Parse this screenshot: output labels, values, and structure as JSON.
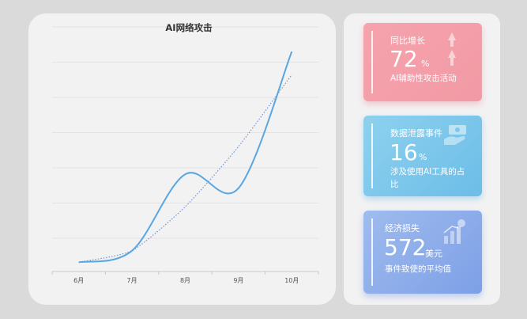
{
  "chart_data": {
    "type": "line",
    "title": "AI网络攻击",
    "categories": [
      "6月",
      "7月",
      "8月",
      "9月",
      "10月"
    ],
    "series": [
      {
        "values": [
          0,
          0.5,
          3.8,
          3.2,
          9.1
        ],
        "color": "#5aa7e0",
        "style": "solid"
      },
      {
        "values": [
          0,
          0.5,
          2.4,
          5.0,
          8.1
        ],
        "color": "#6f93d8",
        "style": "dotted"
      }
    ],
    "ylim": [
      -0.4,
      10.2
    ],
    "grid": "horizontal"
  },
  "cards": [
    {
      "label": "同比增长",
      "value": "72",
      "unit": "%",
      "desc": "AI辅助性攻击活动",
      "icon": "double-arrow-up-icon",
      "color": "#f5a3ad"
    },
    {
      "label": "数据泄露事件",
      "value": "16",
      "unit": "%",
      "desc": "涉及使用AI工具的占比",
      "icon": "money-hand-icon",
      "color": "#7cc6ec"
    },
    {
      "label": "经济损失",
      "value": "572",
      "unit": "美元",
      "desc": "事件致使的平均值",
      "icon": "bar-growth-icon",
      "color": "#8eaeea"
    }
  ]
}
